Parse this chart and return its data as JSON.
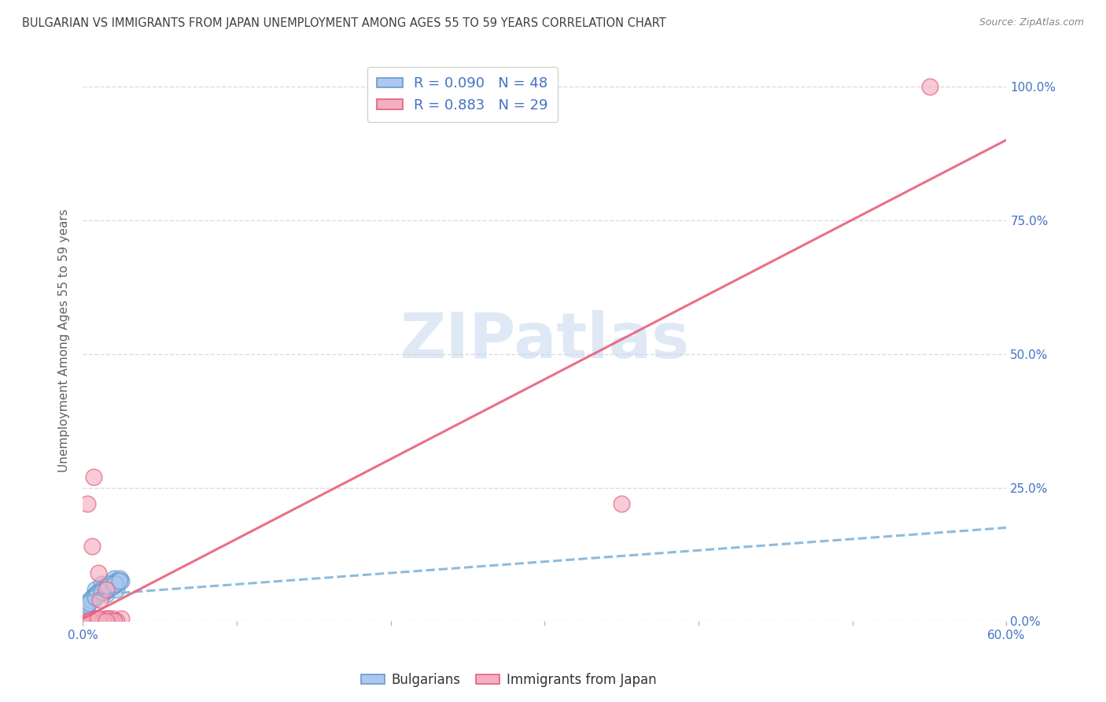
{
  "title": "BULGARIAN VS IMMIGRANTS FROM JAPAN UNEMPLOYMENT AMONG AGES 55 TO 59 YEARS CORRELATION CHART",
  "source": "Source: ZipAtlas.com",
  "ylabel": "Unemployment Among Ages 55 to 59 years",
  "watermark": "ZIPatlas",
  "xlim": [
    0.0,
    0.6
  ],
  "ylim": [
    0.0,
    1.05
  ],
  "ytick_values": [
    0.0,
    0.25,
    0.5,
    0.75,
    1.0
  ],
  "xtick_values": [
    0.0,
    0.1,
    0.2,
    0.3,
    0.4,
    0.5,
    0.6
  ],
  "blue_R": 0.09,
  "blue_N": 48,
  "pink_R": 0.883,
  "pink_N": 29,
  "blue_fill": "#adc8f0",
  "pink_fill": "#f5afc0",
  "blue_edge": "#6699cc",
  "pink_edge": "#e06080",
  "blue_line_color": "#7ab0d8",
  "pink_line_color": "#e8607a",
  "legend_text_color": "#4472c4",
  "title_color": "#404040",
  "ylabel_color": "#606060",
  "tick_color": "#4472c4",
  "grid_color": "#dddddd",
  "background_color": "#ffffff",
  "blue_scatter_x": [
    0.005,
    0.008,
    0.01,
    0.012,
    0.015,
    0.018,
    0.02,
    0.022,
    0.025,
    0.003,
    0.006,
    0.009,
    0.011,
    0.014,
    0.017,
    0.019,
    0.021,
    0.024,
    0.007,
    0.013,
    0.016,
    0.004,
    0.008,
    0.012,
    0.016,
    0.002,
    0.006,
    0.01,
    0.014,
    0.018,
    0.022,
    0.003,
    0.007,
    0.011,
    0.015,
    0.019,
    0.023,
    0.005,
    0.009,
    0.013,
    0.017,
    0.021,
    0.004,
    0.008,
    0.012,
    0.016,
    0.02,
    0.024
  ],
  "blue_scatter_y": [
    0.04,
    0.06,
    0.055,
    0.07,
    0.05,
    0.065,
    0.08,
    0.06,
    0.075,
    0.03,
    0.045,
    0.05,
    0.055,
    0.06,
    0.07,
    0.065,
    0.075,
    0.08,
    0.04,
    0.055,
    0.06,
    0.035,
    0.05,
    0.06,
    0.07,
    0.025,
    0.04,
    0.05,
    0.055,
    0.065,
    0.07,
    0.03,
    0.045,
    0.055,
    0.06,
    0.065,
    0.075,
    0.04,
    0.05,
    0.055,
    0.065,
    0.07,
    0.035,
    0.045,
    0.055,
    0.065,
    0.07,
    0.075
  ],
  "pink_scatter_x": [
    0.005,
    0.008,
    0.012,
    0.016,
    0.02,
    0.025,
    0.003,
    0.007,
    0.011,
    0.015,
    0.019,
    0.022,
    0.006,
    0.01,
    0.014,
    0.018,
    0.003,
    0.008,
    0.012,
    0.016,
    0.02,
    0.004,
    0.009,
    0.013,
    0.35,
    0.005,
    0.01,
    0.015,
    0.55
  ],
  "pink_scatter_y": [
    0.0,
    0.005,
    0.0,
    0.005,
    0.0,
    0.005,
    0.22,
    0.27,
    0.04,
    0.06,
    0.005,
    0.0,
    0.14,
    0.09,
    0.005,
    0.0,
    0.0,
    0.005,
    0.0,
    0.005,
    0.0,
    0.0,
    0.005,
    0.0,
    0.22,
    0.0,
    0.005,
    0.0,
    1.0
  ],
  "blue_trend_x": [
    0.0,
    0.6
  ],
  "blue_trend_y": [
    0.048,
    0.175
  ],
  "pink_trend_x": [
    0.0,
    0.6
  ],
  "pink_trend_y": [
    0.005,
    0.9
  ]
}
